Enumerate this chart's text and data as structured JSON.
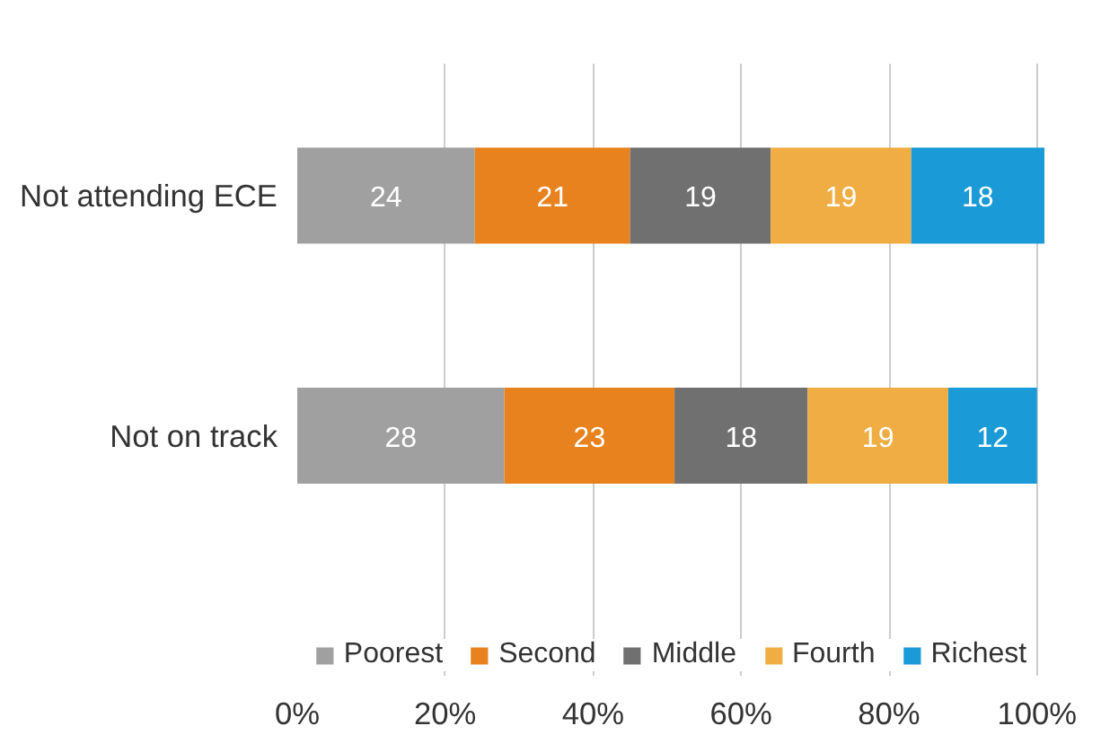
{
  "chart_data": {
    "type": "bar",
    "orientation": "horizontal",
    "stacked": true,
    "categories": [
      "Not attending ECE",
      "Not on track"
    ],
    "series": [
      {
        "name": "Poorest",
        "color": "#a0a0a0",
        "values": [
          24,
          28
        ]
      },
      {
        "name": "Second",
        "color": "#e8821e",
        "values": [
          21,
          23
        ]
      },
      {
        "name": "Middle",
        "color": "#707070",
        "values": [
          19,
          18
        ]
      },
      {
        "name": "Fourth",
        "color": "#f0ad44",
        "values": [
          19,
          19
        ]
      },
      {
        "name": "Richest",
        "color": "#1a9ad6",
        "values": [
          18,
          12
        ]
      }
    ],
    "xlim": [
      0,
      101
    ],
    "xticks": [
      {
        "value": 0,
        "label": "0%"
      },
      {
        "value": 20,
        "label": "20%"
      },
      {
        "value": 40,
        "label": "40%"
      },
      {
        "value": 60,
        "label": "60%"
      },
      {
        "value": 80,
        "label": "80%"
      },
      {
        "value": 100,
        "label": "100%"
      }
    ],
    "grid": "x",
    "legend": "bottom",
    "data_labels": true
  }
}
